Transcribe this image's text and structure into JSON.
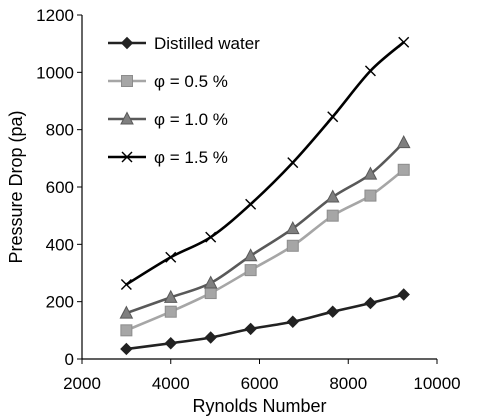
{
  "chart_data": {
    "type": "line",
    "title": "",
    "xlabel": "Rynolds Number",
    "ylabel": "Pressure Drop (pa)",
    "xlim": [
      2000,
      10000
    ],
    "ylim": [
      0,
      1200
    ],
    "xticks": [
      2000,
      4000,
      6000,
      8000,
      10000
    ],
    "yticks": [
      0,
      200,
      400,
      600,
      800,
      1000,
      1200
    ],
    "grid": false,
    "legend": "top-left",
    "series": [
      {
        "name": "Distilled water",
        "marker": "diamond",
        "color": "#222222",
        "x": [
          3000,
          4000,
          4900,
          5800,
          6750,
          7650,
          8500,
          9250
        ],
        "y": [
          35,
          55,
          75,
          105,
          130,
          165,
          195,
          225
        ]
      },
      {
        "name": "φ = 0.5 %",
        "marker": "square",
        "color": "#a6a6a6",
        "x": [
          3000,
          4000,
          4900,
          5800,
          6750,
          7650,
          8500,
          9250
        ],
        "y": [
          100,
          165,
          230,
          310,
          395,
          500,
          570,
          660
        ]
      },
      {
        "name": "φ = 1.0 %",
        "marker": "triangle",
        "color": "#595959",
        "x": [
          3000,
          4000,
          4900,
          5800,
          6750,
          7650,
          8500,
          9250
        ],
        "y": [
          160,
          215,
          265,
          360,
          455,
          565,
          645,
          755
        ]
      },
      {
        "name": "φ = 1.5 %",
        "marker": "x",
        "color": "#000000",
        "x": [
          3000,
          4000,
          4900,
          5800,
          6750,
          7650,
          8500,
          9250
        ],
        "y": [
          260,
          355,
          425,
          540,
          685,
          845,
          1005,
          1105
        ]
      }
    ]
  }
}
